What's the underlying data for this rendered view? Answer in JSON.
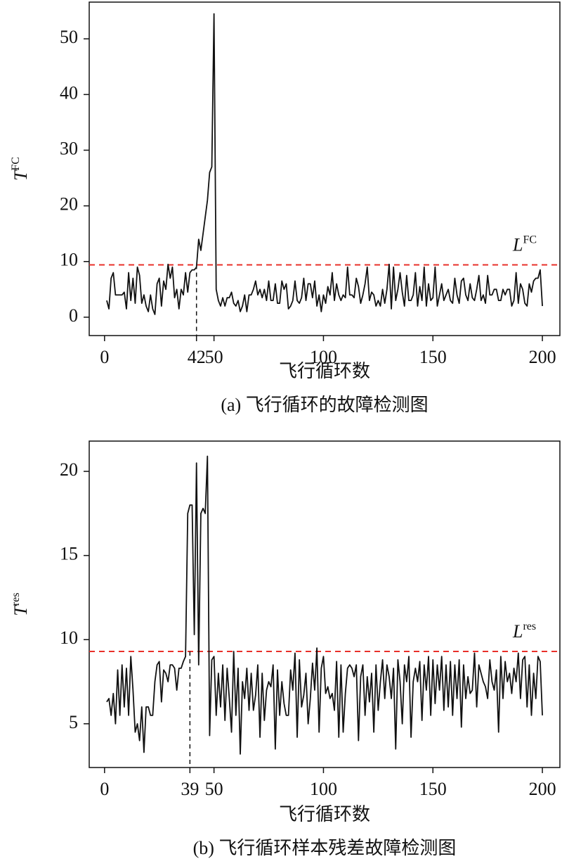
{
  "chart_data": [
    {
      "type": "line",
      "ylabel": "T",
      "ylabel_sup": "FC",
      "xlabel": "飞行循环数",
      "caption": "(a) 飞行循环的故障检测图",
      "xlim": [
        -7,
        208
      ],
      "ylim": [
        -3.3,
        56.6
      ],
      "xticks": [
        0,
        42,
        50,
        100,
        150,
        200
      ],
      "yticks": [
        0,
        10,
        20,
        30,
        40,
        50
      ],
      "threshold": 9.4,
      "threshold_label": "L",
      "threshold_label_sup": "FC",
      "threshold_color": "#e8302a",
      "fault_start": 42,
      "series": [
        {
          "color": "#111111",
          "x": [
            1,
            2,
            3,
            4,
            5,
            6,
            7,
            8,
            9,
            10,
            11,
            12,
            13,
            14,
            15,
            16,
            17,
            18,
            19,
            20,
            21,
            22,
            23,
            24,
            25,
            26,
            27,
            28,
            29,
            30,
            31,
            32,
            33,
            34,
            35,
            36,
            37,
            38,
            39,
            40,
            41,
            42,
            43,
            44,
            45,
            46,
            47,
            48,
            49,
            50,
            51,
            52,
            53,
            54,
            55,
            56,
            57,
            58,
            59,
            60,
            61,
            62,
            63,
            64,
            65,
            66,
            67,
            68,
            69,
            70,
            71,
            72,
            73,
            74,
            75,
            76,
            77,
            78,
            79,
            80,
            81,
            82,
            83,
            84,
            85,
            86,
            87,
            88,
            89,
            90,
            91,
            92,
            93,
            94,
            95,
            96,
            97,
            98,
            99,
            100,
            101,
            102,
            103,
            104,
            105,
            106,
            107,
            108,
            109,
            110,
            111,
            112,
            113,
            114,
            115,
            116,
            117,
            118,
            119,
            120,
            121,
            122,
            123,
            124,
            125,
            126,
            127,
            128,
            129,
            130,
            131,
            132,
            133,
            134,
            135,
            136,
            137,
            138,
            139,
            140,
            141,
            142,
            143,
            144,
            145,
            146,
            147,
            148,
            149,
            150,
            151,
            152,
            153,
            154,
            155,
            156,
            157,
            158,
            159,
            160,
            161,
            162,
            163,
            164,
            165,
            166,
            167,
            168,
            169,
            170,
            171,
            172,
            173,
            174,
            175,
            176,
            177,
            178,
            179,
            180,
            181,
            182,
            183,
            184,
            185,
            186,
            187,
            188,
            189,
            190,
            191,
            192,
            193,
            194,
            195,
            196,
            197,
            198,
            199,
            200
          ],
          "values": [
            3,
            1.5,
            7,
            8,
            4,
            4,
            4,
            4,
            4.5,
            1.5,
            8,
            3,
            7,
            2.5,
            9,
            7.5,
            2.5,
            4,
            2,
            1,
            4,
            1.5,
            0.5,
            6,
            7,
            2,
            6.5,
            5,
            9.5,
            7,
            9,
            3.5,
            5,
            1.5,
            5,
            4,
            8,
            4.5,
            8,
            8.5,
            8.5,
            9,
            14,
            12,
            15,
            18,
            21,
            26,
            27,
            54.5,
            5,
            3,
            2,
            3.5,
            2,
            3.5,
            3.5,
            4.5,
            2.5,
            2,
            3,
            1,
            2,
            4,
            1,
            4,
            4,
            5,
            6.5,
            4,
            5,
            3.5,
            5,
            3,
            6.5,
            3,
            3,
            6,
            2.5,
            2.5,
            6.5,
            5,
            6,
            1.5,
            2,
            3,
            6.5,
            3,
            2.5,
            3.5,
            7,
            3,
            6,
            6,
            3.5,
            6.5,
            2,
            4,
            1,
            4,
            2.5,
            5.5,
            4,
            8,
            3,
            6,
            4,
            3,
            4,
            3.5,
            9,
            4,
            4,
            3.5,
            7,
            5.5,
            2.5,
            4,
            6,
            9,
            3,
            4.5,
            4,
            2,
            3,
            2,
            5,
            2.5,
            5,
            9.5,
            1.5,
            9,
            3,
            5,
            8,
            4.5,
            2,
            7.5,
            3,
            3,
            4,
            8,
            2,
            5.5,
            3,
            9,
            2,
            6,
            3,
            3.5,
            9,
            2,
            4,
            6,
            3,
            4,
            5,
            3,
            2.5,
            7,
            4,
            2.5,
            6.5,
            7,
            4,
            3,
            6,
            3.5,
            3,
            5,
            7.5,
            3,
            4,
            2.5,
            7.5,
            4,
            4,
            5,
            5,
            3,
            3,
            5,
            4,
            5,
            5,
            2,
            3,
            8,
            2.5,
            6,
            5,
            2.5,
            2,
            6,
            4.5,
            6.5,
            7,
            7,
            8.5,
            2
          ]
        }
      ]
    },
    {
      "type": "line",
      "ylabel": "T",
      "ylabel_sup": "res",
      "xlabel": "飞行循环数",
      "caption": "(b) 飞行循环样本残差故障检测图",
      "xlim": [
        -7,
        208
      ],
      "ylim": [
        2.4,
        21.8
      ],
      "xticks": [
        0,
        39,
        50,
        100,
        150,
        200
      ],
      "yticks": [
        5,
        10,
        15,
        20
      ],
      "threshold": 9.3,
      "threshold_label": "L",
      "threshold_label_sup": "res",
      "threshold_color": "#e8302a",
      "fault_start": 39,
      "series": [
        {
          "color": "#111111",
          "x": [
            1,
            2,
            3,
            4,
            5,
            6,
            7,
            8,
            9,
            10,
            11,
            12,
            13,
            14,
            15,
            16,
            17,
            18,
            19,
            20,
            21,
            22,
            23,
            24,
            25,
            26,
            27,
            28,
            29,
            30,
            31,
            32,
            33,
            34,
            35,
            36,
            37,
            38,
            39,
            40,
            41,
            42,
            43,
            44,
            45,
            46,
            47,
            48,
            49,
            50,
            51,
            52,
            53,
            54,
            55,
            56,
            57,
            58,
            59,
            60,
            61,
            62,
            63,
            64,
            65,
            66,
            67,
            68,
            69,
            70,
            71,
            72,
            73,
            74,
            75,
            76,
            77,
            78,
            79,
            80,
            81,
            82,
            83,
            84,
            85,
            86,
            87,
            88,
            89,
            90,
            91,
            92,
            93,
            94,
            95,
            96,
            97,
            98,
            99,
            100,
            101,
            102,
            103,
            104,
            105,
            106,
            107,
            108,
            109,
            110,
            111,
            112,
            113,
            114,
            115,
            116,
            117,
            118,
            119,
            120,
            121,
            122,
            123,
            124,
            125,
            126,
            127,
            128,
            129,
            130,
            131,
            132,
            133,
            134,
            135,
            136,
            137,
            138,
            139,
            140,
            141,
            142,
            143,
            144,
            145,
            146,
            147,
            148,
            149,
            150,
            151,
            152,
            153,
            154,
            155,
            156,
            157,
            158,
            159,
            160,
            161,
            162,
            163,
            164,
            165,
            166,
            167,
            168,
            169,
            170,
            171,
            172,
            173,
            174,
            175,
            176,
            177,
            178,
            179,
            180,
            181,
            182,
            183,
            184,
            185,
            186,
            187,
            188,
            189,
            190,
            191,
            192,
            193,
            194,
            195,
            196,
            197,
            198,
            199,
            200
          ],
          "values": [
            6.3,
            6.5,
            5.5,
            6.8,
            5,
            8.2,
            5.5,
            8.5,
            6,
            8.3,
            5.5,
            9,
            7,
            4.5,
            5,
            4,
            6,
            3.3,
            6,
            6,
            5.5,
            5.5,
            7.5,
            8.5,
            8.7,
            6.3,
            8.2,
            8,
            7.5,
            8.5,
            8.5,
            8.3,
            7,
            8.3,
            8.3,
            8.7,
            9,
            17.5,
            18,
            18,
            10.3,
            20.5,
            8.5,
            17.5,
            17.8,
            17.5,
            20.9,
            4.3,
            8.8,
            9,
            5.5,
            8,
            6,
            8.5,
            5.2,
            8.3,
            6.5,
            4.5,
            9.3,
            5.5,
            8.3,
            3.2,
            7.5,
            6.5,
            8.3,
            5.8,
            8,
            5.8,
            6.7,
            8.5,
            4.2,
            8,
            5.2,
            7,
            7.5,
            7.2,
            8.5,
            3.5,
            8.2,
            5.5,
            7.5,
            6.2,
            5.5,
            5.5,
            8.2,
            7,
            9.2,
            4.2,
            8.8,
            6,
            6.7,
            8,
            5,
            6.5,
            8.6,
            7,
            9.5,
            4.5,
            8.3,
            9,
            6.8,
            7.2,
            6.5,
            6.8,
            5.8,
            8.7,
            4.2,
            8.5,
            4.5,
            6.8,
            8.3,
            8.5,
            8.3,
            7.8,
            8.5,
            4,
            7.8,
            8.5,
            5.5,
            7.8,
            6.3,
            8,
            4.5,
            8.5,
            5.8,
            7.5,
            8.8,
            6.5,
            8.5,
            7.8,
            6.5,
            8.3,
            3.5,
            8.8,
            7.5,
            5,
            8.5,
            7.5,
            9,
            4.2,
            7.5,
            8.3,
            7.5,
            8.7,
            5.2,
            8.5,
            7,
            9,
            5.5,
            8.8,
            6.2,
            8.5,
            7,
            9,
            5.8,
            8.5,
            6,
            8.7,
            5.5,
            8.5,
            6.5,
            8.8,
            4.8,
            8.5,
            6.5,
            7.8,
            6.8,
            7,
            9.2,
            6,
            8.5,
            8,
            7.5,
            7.2,
            6.5,
            8.8,
            7.5,
            7,
            8.2,
            4.5,
            9,
            6.5,
            8.7,
            7.5,
            8,
            6.8,
            8.3,
            7.5,
            9.2,
            6.5,
            8.8,
            9,
            6,
            8.5,
            5.5,
            8,
            6.5,
            9,
            8.7,
            5.5
          ]
        }
      ]
    }
  ]
}
